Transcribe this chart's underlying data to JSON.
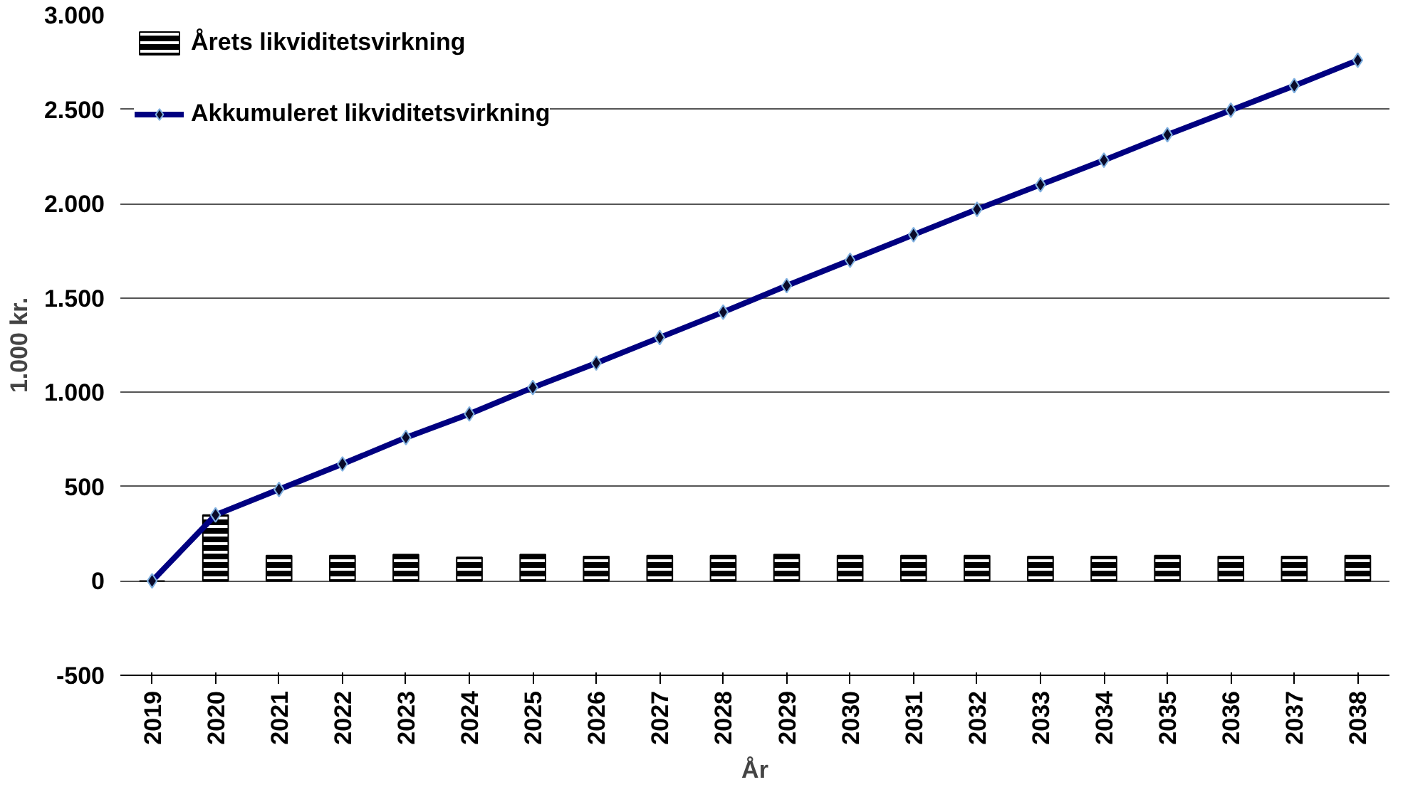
{
  "chart_data": {
    "type": "bar",
    "xlabel": "År",
    "ylabel": "1.000 kr.",
    "categories": [
      "2019",
      "2020",
      "2021",
      "2022",
      "2023",
      "2024",
      "2025",
      "2026",
      "2027",
      "2028",
      "2029",
      "2030",
      "2031",
      "2032",
      "2033",
      "2034",
      "2035",
      "2036",
      "2037",
      "2038"
    ],
    "series": [
      {
        "name": "Årets likviditetsvirkning",
        "color": "#000000",
        "values": [
          0,
          350,
          135,
          135,
          140,
          125,
          140,
          130,
          135,
          135,
          140,
          135,
          135,
          135,
          130,
          130,
          135,
          130,
          130,
          135
        ]
      },
      {
        "name": "Akkumuleret likviditetsvirkning",
        "type": "line",
        "color": "#000080",
        "marker": "diamond",
        "values": [
          0,
          350,
          485,
          620,
          760,
          885,
          1025,
          1155,
          1290,
          1425,
          1565,
          1700,
          1835,
          1970,
          2100,
          2230,
          2365,
          2495,
          2625,
          2760
        ]
      }
    ],
    "ylim": [
      -500,
      3000
    ],
    "yticks": [
      -500,
      0,
      500,
      {
        "value": 1000,
        "label": "1.000"
      },
      {
        "value": 1500,
        "label": "1.500"
      },
      {
        "value": 2000,
        "label": "2.000"
      },
      {
        "value": 2500,
        "label": "2.500"
      },
      {
        "value": 3000,
        "label": "3.000"
      }
    ],
    "grid": "y",
    "legend": "top left"
  }
}
